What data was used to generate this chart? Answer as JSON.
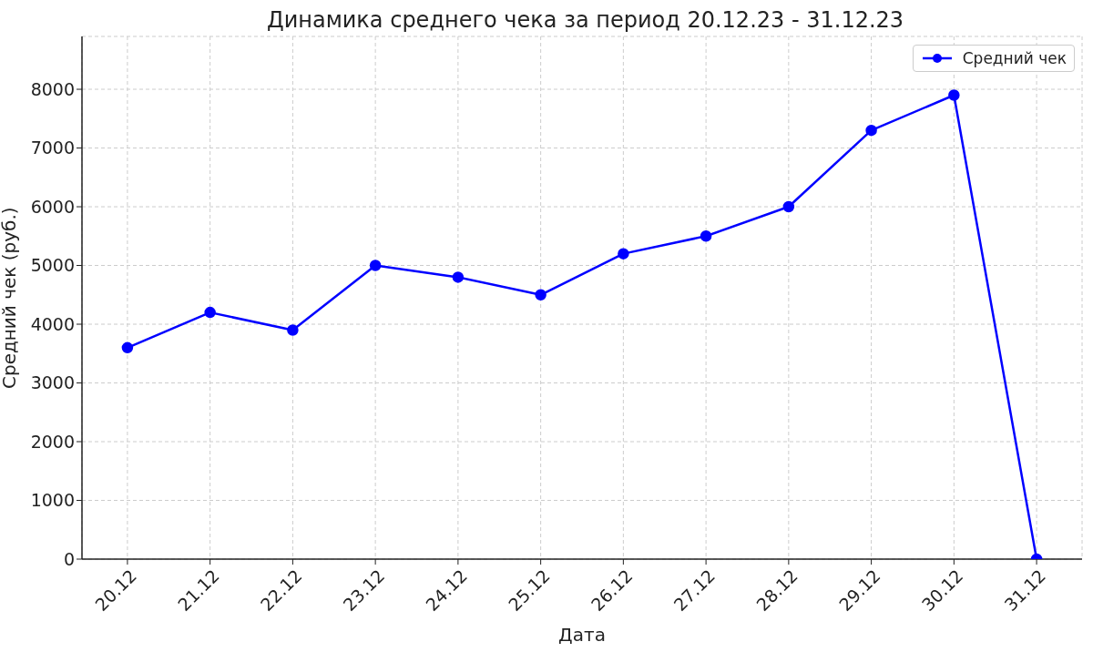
{
  "chart_data": {
    "type": "line",
    "title": "Динамика среднего чека за период 20.12.23 - 31.12.23",
    "xlabel": "Дата",
    "ylabel": "Средний чек (руб.)",
    "categories": [
      "20.12",
      "21.12",
      "22.12",
      "23.12",
      "24.12",
      "25.12",
      "26.12",
      "27.12",
      "28.12",
      "29.12",
      "30.12",
      "31.12"
    ],
    "series": [
      {
        "name": "Средний чек",
        "color": "#0000ff",
        "values": [
          3600,
          4200,
          3900,
          5000,
          4800,
          4500,
          5200,
          5500,
          6000,
          7300,
          7900,
          0
        ]
      }
    ],
    "ylim": [
      0,
      8900
    ],
    "yticks": [
      0,
      1000,
      2000,
      3000,
      4000,
      5000,
      6000,
      7000,
      8000
    ],
    "grid": true,
    "legend": "top right",
    "marker": "circle",
    "line_style": "solid"
  }
}
